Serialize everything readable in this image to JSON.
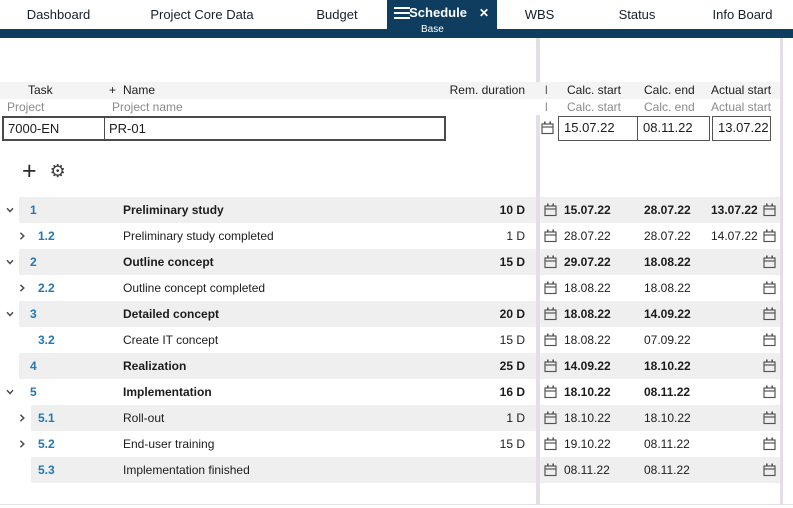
{
  "tabs": {
    "items": [
      {
        "label": "Dashboard"
      },
      {
        "label": "Project Core Data"
      },
      {
        "label": "Budget"
      },
      {
        "label": "WBS"
      },
      {
        "label": "Status"
      },
      {
        "label": "Info Board"
      }
    ],
    "active": {
      "label": "Schedule",
      "sublabel": "Base",
      "close_glyph": "✕"
    }
  },
  "columns": {
    "task": "Task",
    "name_plus": "+",
    "name": "Name",
    "rem_duration": "Rem. duration",
    "clipped_fragment": "l",
    "calc_start": "Calc. start",
    "calc_end": "Calc. end",
    "actual_start": "Actual start"
  },
  "filter": {
    "project_label": "Project",
    "project_name_label": "Project name",
    "project_value": "7000-EN",
    "project_name_value": "PR-01",
    "calc_start_label": "Calc. start",
    "calc_end_label": "Calc. end",
    "actual_start_label": "Actual start",
    "calc_start_value": "15.07.22",
    "calc_end_value": "08.11.22",
    "actual_start_value": "13.07.22"
  },
  "toolbar": {
    "add_glyph": "+",
    "settings_glyph": "⚙"
  },
  "grid": {
    "rows": [
      {
        "num": "1",
        "chevron": "down",
        "name": "Preliminary study",
        "bold": true,
        "duration": "10 D",
        "calc_start": "15.07.22",
        "calc_end": "28.07.22",
        "actual_start": "13.07.22",
        "shade": true,
        "level": 0
      },
      {
        "num": "1.2",
        "chevron": "right",
        "name": "Preliminary study completed",
        "bold": false,
        "duration": "1 D",
        "calc_start": "28.07.22",
        "calc_end": "28.07.22",
        "actual_start": "14.07.22",
        "shade": false,
        "level": 1
      },
      {
        "num": "2",
        "chevron": "down",
        "name": "Outline concept",
        "bold": true,
        "duration": "15 D",
        "calc_start": "29.07.22",
        "calc_end": "18.08.22",
        "actual_start": "",
        "shade": true,
        "level": 0
      },
      {
        "num": "2.2",
        "chevron": "right",
        "name": "Outline concept completed",
        "bold": false,
        "duration": "",
        "calc_start": "18.08.22",
        "calc_end": "18.08.22",
        "actual_start": "",
        "shade": false,
        "level": 1
      },
      {
        "num": "3",
        "chevron": "down",
        "name": "Detailed concept",
        "bold": true,
        "duration": "20 D",
        "calc_start": "18.08.22",
        "calc_end": "14.09.22",
        "actual_start": "",
        "shade": true,
        "level": 0
      },
      {
        "num": "3.2",
        "chevron": "none",
        "name": "Create IT concept",
        "bold": false,
        "duration": "15 D",
        "calc_start": "18.08.22",
        "calc_end": "07.09.22",
        "actual_start": "",
        "shade": false,
        "level": 1
      },
      {
        "num": "4",
        "chevron": "none",
        "name": "Realization",
        "bold": true,
        "duration": "25 D",
        "calc_start": "14.09.22",
        "calc_end": "18.10.22",
        "actual_start": "",
        "shade": true,
        "level": 0
      },
      {
        "num": "5",
        "chevron": "down",
        "name": "Implementation",
        "bold": true,
        "duration": "16 D",
        "calc_start": "18.10.22",
        "calc_end": "08.11.22",
        "actual_start": "",
        "shade": false,
        "level": 0
      },
      {
        "num": "5.1",
        "chevron": "right",
        "name": "Roll-out",
        "bold": false,
        "duration": "1 D",
        "calc_start": "18.10.22",
        "calc_end": "18.10.22",
        "actual_start": "",
        "shade": true,
        "level": 1
      },
      {
        "num": "5.2",
        "chevron": "right",
        "name": "End-user training",
        "bold": false,
        "duration": "15 D",
        "calc_start": "19.10.22",
        "calc_end": "08.11.22",
        "actual_start": "",
        "shade": false,
        "level": 1
      },
      {
        "num": "5.3",
        "chevron": "none",
        "name": "Implementation finished",
        "bold": false,
        "duration": "",
        "calc_start": "08.11.22",
        "calc_end": "08.11.22",
        "actual_start": "",
        "shade": true,
        "level": 1
      }
    ]
  },
  "colors": {
    "accent_navy": "#0e3d5f",
    "link_blue": "#2178b5",
    "row_shade": "#efefef",
    "header_bg": "#f4f4f4",
    "splitter_pink": "#e5dee6"
  }
}
